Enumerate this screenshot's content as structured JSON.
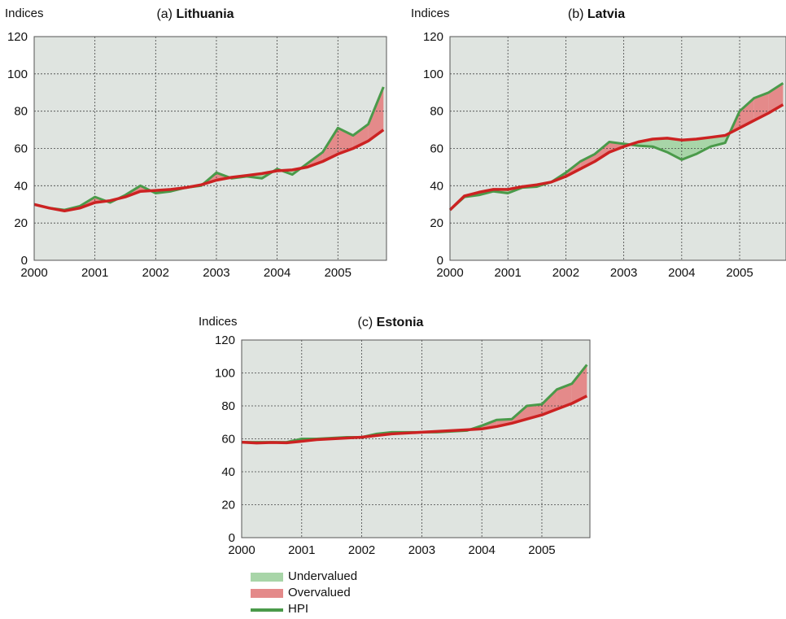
{
  "legend": {
    "undervalued": "Undervalued",
    "overvalued": "Overvalued",
    "hpi": "HPI"
  },
  "colors": {
    "plot_bg": "#dfe4e0",
    "undervalued": "#a8d5a8",
    "overvalued": "#e48a8a",
    "hpi": "#4a9a4a",
    "fundamental": "#cc2222"
  },
  "chart_data": [
    {
      "type": "line",
      "title_prefix": "(a)",
      "title": "Lithuania",
      "ylabel": "Indices",
      "xlabel": "",
      "xlim": [
        2000,
        2005.8
      ],
      "ylim": [
        0,
        120
      ],
      "xticks": [
        "2000",
        "2001",
        "2002",
        "2003",
        "2004",
        "2005"
      ],
      "yticks": [
        "0",
        "20",
        "40",
        "60",
        "80",
        "100",
        "120"
      ],
      "grid": true,
      "x": [
        2000,
        2000.25,
        2000.5,
        2000.75,
        2001,
        2001.25,
        2001.5,
        2001.75,
        2002,
        2002.25,
        2002.5,
        2002.75,
        2003,
        2003.25,
        2003.5,
        2003.75,
        2004,
        2004.25,
        2004.5,
        2004.75,
        2005,
        2005.25,
        2005.5,
        2005.75
      ],
      "series": [
        {
          "name": "HPI",
          "values": [
            30,
            28,
            27,
            29,
            34,
            31,
            35,
            40,
            36,
            37,
            39,
            40,
            47,
            44,
            45,
            44,
            49,
            46,
            52,
            58,
            71,
            67,
            73,
            93
          ]
        },
        {
          "values": [
            30,
            28,
            26.5,
            28,
            31,
            32,
            34,
            37,
            37.5,
            38,
            39,
            40.5,
            43,
            44.5,
            45.5,
            46.5,
            48,
            48.5,
            50,
            53,
            57,
            60,
            64,
            70
          ]
        }
      ]
    },
    {
      "type": "line",
      "title_prefix": "(b)",
      "title": "Latvia",
      "ylabel": "Indices",
      "xlabel": "",
      "xlim": [
        2000,
        2005.8
      ],
      "ylim": [
        0,
        120
      ],
      "xticks": [
        "2000",
        "2001",
        "2002",
        "2003",
        "2004",
        "2005"
      ],
      "yticks": [
        "0",
        "20",
        "40",
        "60",
        "80",
        "100",
        "120"
      ],
      "grid": true,
      "x": [
        2000,
        2000.25,
        2000.5,
        2000.75,
        2001,
        2001.25,
        2001.5,
        2001.75,
        2002,
        2002.25,
        2002.5,
        2002.75,
        2003,
        2003.25,
        2003.5,
        2003.75,
        2004,
        2004.25,
        2004.5,
        2004.75,
        2005,
        2005.25,
        2005.5,
        2005.75
      ],
      "series": [
        {
          "name": "HPI",
          "values": [
            27,
            34,
            35,
            37,
            36,
            39,
            39.5,
            42,
            47,
            53,
            57,
            63.5,
            62.5,
            61.5,
            61,
            58,
            54,
            57,
            61,
            63,
            80,
            87,
            90,
            95
          ]
        },
        {
          "values": [
            27,
            34.5,
            36.5,
            38,
            38,
            39.5,
            40.5,
            42,
            45,
            49,
            53,
            58,
            61,
            63.5,
            65,
            65.5,
            64.5,
            65,
            66,
            67,
            71,
            75,
            79,
            83.5
          ]
        }
      ]
    },
    {
      "type": "line",
      "title_prefix": "(c)",
      "title": "Estonia",
      "ylabel": "Indices",
      "xlabel": "",
      "xlim": [
        2000,
        2005.8
      ],
      "ylim": [
        0,
        120
      ],
      "xticks": [
        "2000",
        "2001",
        "2002",
        "2003",
        "2004",
        "2005"
      ],
      "yticks": [
        "0",
        "20",
        "40",
        "60",
        "80",
        "100",
        "120"
      ],
      "grid": true,
      "x": [
        2000,
        2000.25,
        2000.5,
        2000.75,
        2001,
        2001.25,
        2001.5,
        2001.75,
        2002,
        2002.25,
        2002.5,
        2002.75,
        2003,
        2003.25,
        2003.5,
        2003.75,
        2004,
        2004.25,
        2004.5,
        2004.75,
        2005,
        2005.25,
        2005.5,
        2005.75
      ],
      "series": [
        {
          "name": "HPI",
          "values": [
            58,
            58,
            58,
            58,
            60,
            60,
            60.5,
            61,
            61,
            63,
            64,
            64,
            64,
            64,
            64.5,
            65,
            68,
            71.5,
            72,
            80,
            81,
            90,
            93.5,
            105
          ]
        },
        {
          "values": [
            58,
            57.5,
            57.8,
            57.6,
            58.5,
            59.5,
            60,
            60.5,
            61,
            62,
            63,
            63.5,
            64,
            64.5,
            65,
            65.5,
            66,
            67.5,
            69.5,
            72,
            74.5,
            78,
            81.5,
            86
          ]
        }
      ]
    }
  ]
}
